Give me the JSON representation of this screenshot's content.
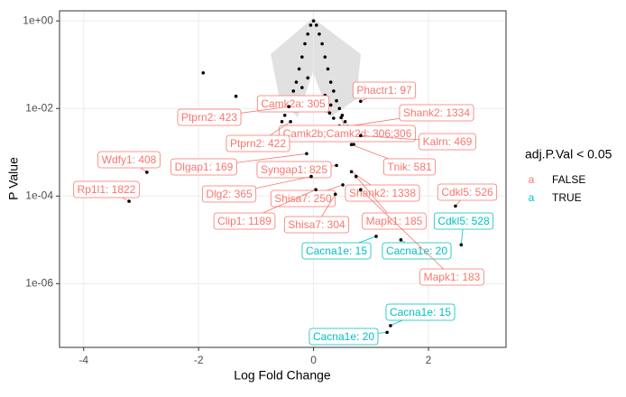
{
  "chart_data": {
    "type": "scatter",
    "xlabel": "Log Fold Change",
    "ylabel": "P Value",
    "xlim": [
      -4.42,
      3.35
    ],
    "xticks": [
      -4,
      -2,
      0,
      2
    ],
    "ylim": [
      3.5e-08,
      1.7
    ],
    "log_y": true,
    "yticks": [
      {
        "value": 1,
        "label": "1e+00"
      },
      {
        "value": 0.01,
        "label": "1e-02"
      },
      {
        "value": 0.0001,
        "label": "1e-04"
      },
      {
        "value": 1e-06,
        "label": "1e-06"
      }
    ],
    "grid": true,
    "points": {
      "color": "#000000",
      "x": [
        0,
        0.05,
        -0.05,
        0.1,
        -0.1,
        0.15,
        -0.15,
        0.2,
        -0.2,
        0.25,
        -0.25,
        0.3,
        -0.3,
        0.35,
        -0.35,
        0.4,
        -0.4,
        0.45,
        -0.45,
        0.5,
        -0.5,
        0.55,
        -0.55,
        0.6,
        -0.3,
        0.65,
        0.7,
        0.35,
        0.2,
        -0.1,
        0.45,
        0.5,
        0.3,
        -0.2,
        -1.92,
        -1.35,
        -0.5,
        0.9
      ],
      "y": [
        1,
        0.8,
        0.8,
        0.5,
        0.5,
        0.3,
        0.3,
        0.15,
        0.15,
        0.08,
        0.08,
        0.04,
        0.04,
        0.025,
        0.025,
        0.015,
        0.015,
        0.01,
        0.01,
        0.007,
        0.007,
        0.005,
        0.005,
        0.003,
        0.009,
        0.002,
        0.0015,
        0.006,
        0.02,
        0.05,
        0.004,
        0.003,
        0.012,
        0.03,
        0.065,
        0.019,
        0.013,
        0.0025
      ]
    },
    "legend": {
      "title": "adj.P.Val < 0.05",
      "key": "a",
      "entries": [
        {
          "name": "FALSE",
          "color": "#F8766D"
        },
        {
          "name": "TRUE",
          "color": "#00BFC4"
        }
      ]
    },
    "labels": [
      {
        "text": "Phactr1: 97",
        "x": 0.82,
        "y": 0.0146,
        "significant": "FALSE"
      },
      {
        "text": "Camk2a: 305",
        "x": 0.28,
        "y": 0.0079,
        "significant": "FALSE"
      },
      {
        "text": "Shank2: 1334",
        "x": 0.59,
        "y": 0.0039,
        "significant": "FALSE"
      },
      {
        "text": "Ptprn2: 423",
        "x": -0.43,
        "y": 0.011,
        "significant": "FALSE"
      },
      {
        "text": "Camk2b;Camk2d: 306;306",
        "x": 0.48,
        "y": 0.0062,
        "significant": "FALSE"
      },
      {
        "text": "Ptprn2: 422",
        "x": -0.4,
        "y": 0.005,
        "significant": "FALSE"
      },
      {
        "text": "Kalrn: 469",
        "x": 0.82,
        "y": 0.0024,
        "significant": "FALSE"
      },
      {
        "text": "Wdfy1: 408",
        "x": -2.9,
        "y": 0.00035,
        "significant": "FALSE"
      },
      {
        "text": "Dlgap1: 169",
        "x": -0.12,
        "y": 0.00093,
        "significant": "FALSE"
      },
      {
        "text": "Syngap1: 825",
        "x": 0.4,
        "y": 0.0005,
        "significant": "FALSE"
      },
      {
        "text": "Tnik: 581",
        "x": 0.66,
        "y": 0.0015,
        "significant": "FALSE"
      },
      {
        "text": "Rp1l1: 1822",
        "x": -3.21,
        "y": 7.6e-05,
        "significant": "FALSE"
      },
      {
        "text": "Dlg2: 365",
        "x": -0.04,
        "y": 0.00028,
        "significant": "FALSE"
      },
      {
        "text": "Shisa7: 250",
        "x": 0.51,
        "y": 0.00018,
        "significant": "FALSE"
      },
      {
        "text": "Shank2: 1338",
        "x": 0.66,
        "y": 0.00036,
        "significant": "FALSE"
      },
      {
        "text": "Cdkl5: 526",
        "x": 2.47,
        "y": 5.9e-05,
        "significant": "FALSE"
      },
      {
        "text": "Clip1: 1189",
        "x": 0.04,
        "y": 0.00014,
        "significant": "FALSE"
      },
      {
        "text": "Shisa7: 304",
        "x": 0.38,
        "y": 0.00011,
        "significant": "FALSE"
      },
      {
        "text": "Mapk1: 185",
        "x": 0.74,
        "y": 0.00028,
        "significant": "FALSE"
      },
      {
        "text": "Cdkl5: 528",
        "x": 2.57,
        "y": 7.7e-06,
        "significant": "TRUE"
      },
      {
        "text": "Cacna1e: 15",
        "x": 1.09,
        "y": 1.2e-05,
        "significant": "TRUE"
      },
      {
        "text": "Cacna1e: 20",
        "x": 1.52,
        "y": 1e-05,
        "significant": "TRUE"
      },
      {
        "text": "Mapk1: 183",
        "x": 0.82,
        "y": 0.00014,
        "significant": "FALSE"
      },
      {
        "text": "Cacna1e: 15",
        "x": 1.34,
        "y": 1.1e-07,
        "significant": "TRUE"
      },
      {
        "text": "Cacna1e: 20",
        "x": 1.28,
        "y": 7.7e-08,
        "significant": "TRUE"
      }
    ]
  }
}
